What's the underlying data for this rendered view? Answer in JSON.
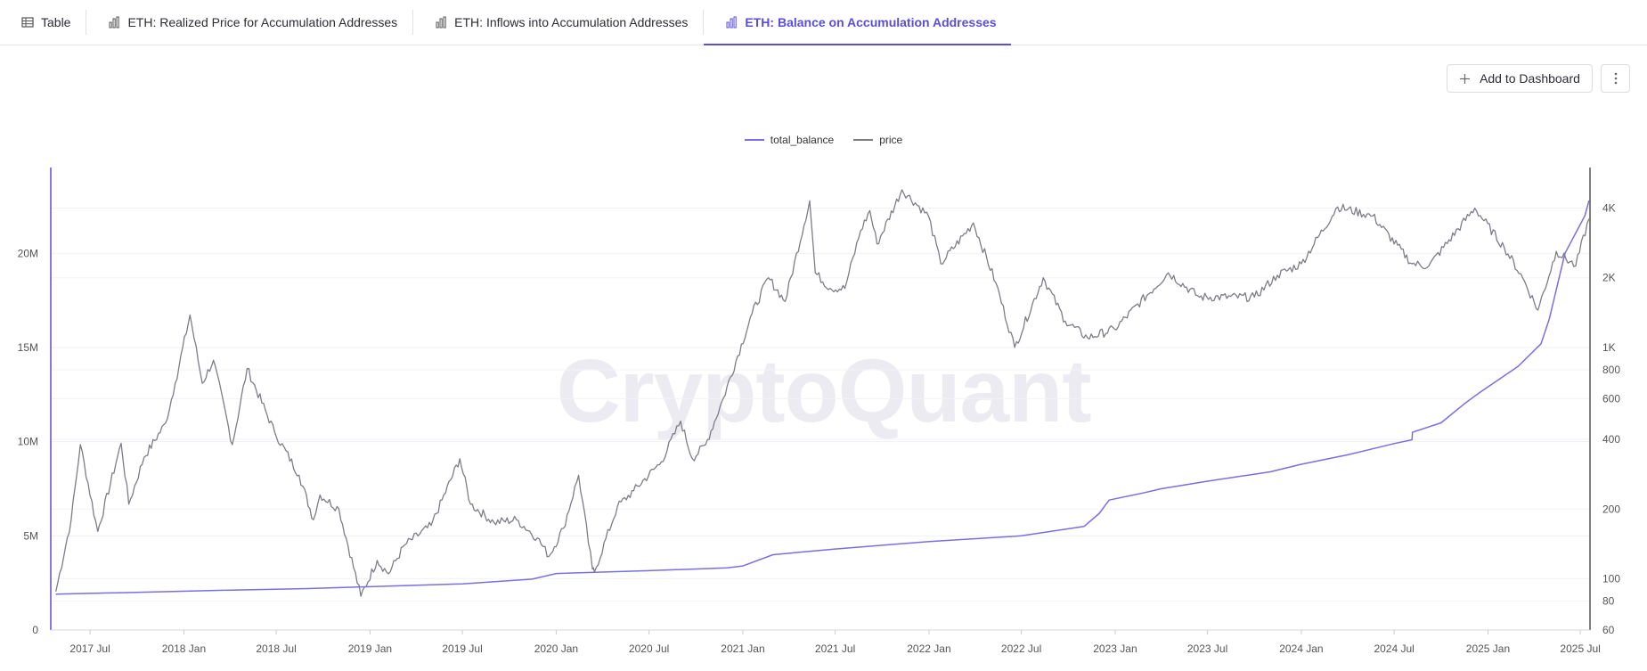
{
  "tabs": [
    {
      "label": "Table",
      "icon": "table-icon"
    },
    {
      "label": "ETH: Realized Price for Accumulation Addresses",
      "icon": "bar-chart-icon"
    },
    {
      "label": "ETH: Inflows into Accumulation Addresses",
      "icon": "bar-chart-icon"
    },
    {
      "label": "ETH: Balance on Accumulation Addresses",
      "icon": "bar-chart-icon",
      "active": true
    }
  ],
  "toolbar": {
    "add_dashboard_label": "Add to Dashboard"
  },
  "watermark": "CryptoQuant",
  "colors": {
    "accent": "#5b4dd6",
    "balance": "#7b6ee0",
    "price": "#7d7d87"
  },
  "chart_data": {
    "type": "line",
    "title": "",
    "legend": "top-center",
    "grid": true,
    "x_ticks": [
      "2017 Jul",
      "2018 Jan",
      "2018 Jul",
      "2019 Jan",
      "2019 Jul",
      "2020 Jan",
      "2020 Jul",
      "2021 Jan",
      "2021 Jul",
      "2022 Jan",
      "2022 Jul",
      "2023 Jan",
      "2023 Jul",
      "2024 Jan",
      "2024 Jul",
      "2025 Jan",
      "2025 Jul"
    ],
    "x_range": [
      "2017-04-15",
      "2025-07-20"
    ],
    "y_left": {
      "label": "",
      "ticks": [
        0,
        5000000,
        10000000,
        15000000,
        20000000
      ],
      "tick_labels": [
        "0",
        "5M",
        "10M",
        "15M",
        "20M"
      ],
      "range": [
        0,
        23800000
      ]
    },
    "y_right": {
      "label": "",
      "scale": "log",
      "ticks": [
        60,
        80,
        100,
        200,
        400,
        600,
        800,
        1000,
        2000,
        4000
      ],
      "tick_labels": [
        "60",
        "80",
        "100",
        "200",
        "400",
        "600",
        "800",
        "1K",
        "2K",
        "4K"
      ],
      "range": [
        60,
        5200
      ]
    },
    "series": [
      {
        "name": "total_balance",
        "axis": "left",
        "points": [
          [
            "2017-04-25",
            1900000
          ],
          [
            "2017-10-01",
            2000000
          ],
          [
            "2018-03-01",
            2100000
          ],
          [
            "2018-09-01",
            2200000
          ],
          [
            "2019-01-01",
            2300000
          ],
          [
            "2019-07-01",
            2450000
          ],
          [
            "2019-11-15",
            2700000
          ],
          [
            "2020-01-01",
            3000000
          ],
          [
            "2020-07-01",
            3150000
          ],
          [
            "2020-12-01",
            3300000
          ],
          [
            "2021-01-01",
            3400000
          ],
          [
            "2021-03-01",
            4000000
          ],
          [
            "2021-07-01",
            4300000
          ],
          [
            "2022-01-01",
            4700000
          ],
          [
            "2022-07-01",
            5000000
          ],
          [
            "2022-11-01",
            5500000
          ],
          [
            "2022-12-01",
            6200000
          ],
          [
            "2022-12-20",
            6900000
          ],
          [
            "2023-03-01",
            7300000
          ],
          [
            "2023-04-01",
            7500000
          ],
          [
            "2023-07-01",
            7900000
          ],
          [
            "2023-11-01",
            8400000
          ],
          [
            "2024-01-01",
            8800000
          ],
          [
            "2024-04-01",
            9300000
          ],
          [
            "2024-07-01",
            9900000
          ],
          [
            "2024-08-05",
            10100000
          ],
          [
            "2024-08-06",
            10500000
          ],
          [
            "2024-10-01",
            11000000
          ],
          [
            "2024-11-15",
            12000000
          ],
          [
            "2024-12-15",
            12600000
          ],
          [
            "2025-03-01",
            14000000
          ],
          [
            "2025-04-15",
            15200000
          ],
          [
            "2025-05-01",
            16500000
          ],
          [
            "2025-06-01",
            20000000
          ],
          [
            "2025-07-10",
            22000000
          ],
          [
            "2025-07-18",
            22800000
          ]
        ]
      },
      {
        "name": "price",
        "axis": "right",
        "points": [
          [
            "2017-04-25",
            88
          ],
          [
            "2017-05-25",
            180
          ],
          [
            "2017-06-12",
            380
          ],
          [
            "2017-07-16",
            160
          ],
          [
            "2017-08-31",
            385
          ],
          [
            "2017-09-15",
            210
          ],
          [
            "2017-10-15",
            335
          ],
          [
            "2017-11-26",
            470
          ],
          [
            "2017-12-15",
            700
          ],
          [
            "2018-01-13",
            1380
          ],
          [
            "2018-02-06",
            700
          ],
          [
            "2018-02-28",
            880
          ],
          [
            "2018-04-06",
            380
          ],
          [
            "2018-05-05",
            810
          ],
          [
            "2018-06-28",
            430
          ],
          [
            "2018-08-15",
            280
          ],
          [
            "2018-09-12",
            180
          ],
          [
            "2018-09-25",
            230
          ],
          [
            "2018-11-01",
            200
          ],
          [
            "2018-12-14",
            84
          ],
          [
            "2019-01-15",
            120
          ],
          [
            "2019-02-06",
            105
          ],
          [
            "2019-03-10",
            140
          ],
          [
            "2019-05-01",
            170
          ],
          [
            "2019-06-26",
            330
          ],
          [
            "2019-07-17",
            210
          ],
          [
            "2019-09-01",
            175
          ],
          [
            "2019-10-15",
            180
          ],
          [
            "2019-11-25",
            150
          ],
          [
            "2019-12-18",
            125
          ],
          [
            "2020-01-15",
            165
          ],
          [
            "2020-02-14",
            280
          ],
          [
            "2020-03-12",
            110
          ],
          [
            "2020-03-16",
            107
          ],
          [
            "2020-04-30",
            205
          ],
          [
            "2020-06-01",
            240
          ],
          [
            "2020-07-25",
            320
          ],
          [
            "2020-09-01",
            480
          ],
          [
            "2020-09-24",
            330
          ],
          [
            "2020-10-20",
            380
          ],
          [
            "2020-11-24",
            605
          ],
          [
            "2021-01-19",
            1400
          ],
          [
            "2021-02-20",
            2000
          ],
          [
            "2021-03-25",
            1580
          ],
          [
            "2021-05-12",
            4300
          ],
          [
            "2021-05-23",
            2100
          ],
          [
            "2021-06-21",
            1800
          ],
          [
            "2021-07-20",
            1800
          ],
          [
            "2021-08-20",
            3200
          ],
          [
            "2021-09-07",
            3900
          ],
          [
            "2021-09-21",
            2800
          ],
          [
            "2021-11-09",
            4800
          ],
          [
            "2021-12-31",
            3700
          ],
          [
            "2022-01-24",
            2300
          ],
          [
            "2022-03-29",
            3450
          ],
          [
            "2022-05-12",
            1900
          ],
          [
            "2022-06-18",
            1000
          ],
          [
            "2022-08-13",
            2000
          ],
          [
            "2022-09-25",
            1300
          ],
          [
            "2022-11-08",
            1100
          ],
          [
            "2022-12-31",
            1200
          ],
          [
            "2023-04-15",
            2100
          ],
          [
            "2023-06-15",
            1650
          ],
          [
            "2023-10-01",
            1650
          ],
          [
            "2023-11-15",
            2050
          ],
          [
            "2024-01-01",
            2300
          ],
          [
            "2024-03-12",
            4050
          ],
          [
            "2024-05-20",
            3700
          ],
          [
            "2024-08-05",
            2300
          ],
          [
            "2024-09-07",
            2250
          ],
          [
            "2024-12-06",
            4000
          ],
          [
            "2025-02-02",
            2700
          ],
          [
            "2025-03-10",
            2000
          ],
          [
            "2025-04-09",
            1450
          ],
          [
            "2025-05-15",
            2600
          ],
          [
            "2025-06-22",
            2250
          ],
          [
            "2025-07-18",
            3600
          ]
        ]
      }
    ]
  }
}
